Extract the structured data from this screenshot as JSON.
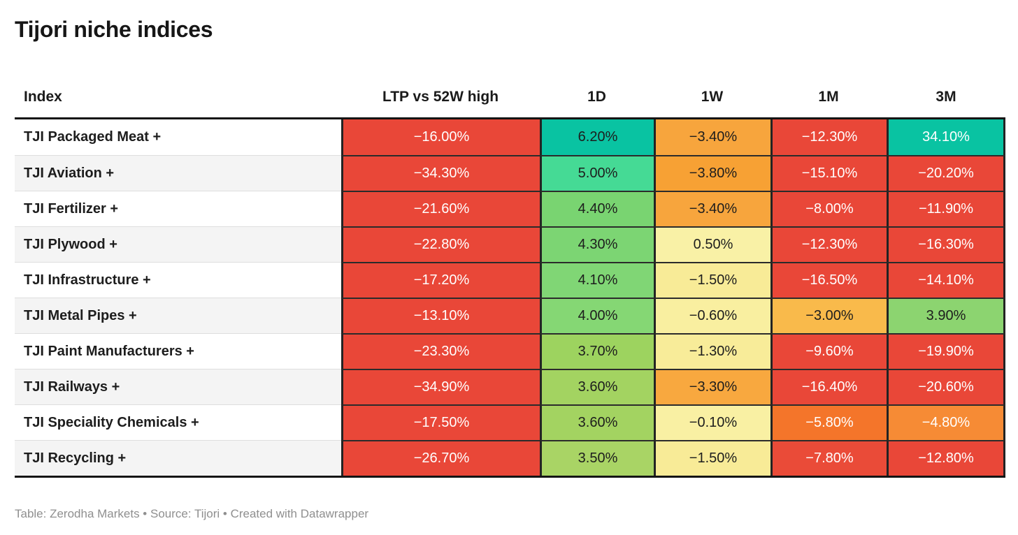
{
  "title": "Tijori niche indices",
  "columns": [
    {
      "label": "Index"
    },
    {
      "label": "LTP vs 52W high"
    },
    {
      "label": "1D"
    },
    {
      "label": "1W"
    },
    {
      "label": "1M"
    },
    {
      "label": "3M"
    }
  ],
  "footer": "Table: Zerodha Markets • Source: Tijori • Created with Datawrapper",
  "palette": {
    "red": "#e94738",
    "orange_red": "#f4752a",
    "orange": "#f7a53d",
    "light_orange": "#f9ba4b",
    "pale_yellow": "#f9f0a1",
    "yellow_green": "#a6d363",
    "green": "#7ed675",
    "emerald": "#45da95",
    "teal": "#09c3a2",
    "dark_text": "#1d1d1d",
    "white_text": "#ffffff"
  },
  "table": {
    "rows": [
      {
        "name": "TJI Packaged Meat +",
        "cells": [
          {
            "text": "−16.00%",
            "bg": "#e94738",
            "fg": "#ffffff"
          },
          {
            "text": "6.20%",
            "bg": "#09c3a2",
            "fg": "#1d1d1d"
          },
          {
            "text": "−3.40%",
            "bg": "#f7a53d",
            "fg": "#1d1d1d"
          },
          {
            "text": "−12.30%",
            "bg": "#e94738",
            "fg": "#ffffff"
          },
          {
            "text": "34.10%",
            "bg": "#09c3a2",
            "fg": "#ffffff"
          }
        ]
      },
      {
        "name": "TJI Aviation +",
        "cells": [
          {
            "text": "−34.30%",
            "bg": "#e94738",
            "fg": "#ffffff"
          },
          {
            "text": "5.00%",
            "bg": "#45da95",
            "fg": "#1d1d1d"
          },
          {
            "text": "−3.80%",
            "bg": "#f7a134",
            "fg": "#1d1d1d"
          },
          {
            "text": "−15.10%",
            "bg": "#e94738",
            "fg": "#ffffff"
          },
          {
            "text": "−20.20%",
            "bg": "#e94738",
            "fg": "#ffffff"
          }
        ]
      },
      {
        "name": "TJI Fertilizer +",
        "cells": [
          {
            "text": "−21.60%",
            "bg": "#e94738",
            "fg": "#ffffff"
          },
          {
            "text": "4.40%",
            "bg": "#79d471",
            "fg": "#1d1d1d"
          },
          {
            "text": "−3.40%",
            "bg": "#f7a53d",
            "fg": "#1d1d1d"
          },
          {
            "text": "−8.00%",
            "bg": "#e94738",
            "fg": "#ffffff"
          },
          {
            "text": "−11.90%",
            "bg": "#e94738",
            "fg": "#ffffff"
          }
        ]
      },
      {
        "name": "TJI Plywood +",
        "cells": [
          {
            "text": "−22.80%",
            "bg": "#e94738",
            "fg": "#ffffff"
          },
          {
            "text": "4.30%",
            "bg": "#7cd573",
            "fg": "#1d1d1d"
          },
          {
            "text": "0.50%",
            "bg": "#f9f1a6",
            "fg": "#1d1d1d"
          },
          {
            "text": "−12.30%",
            "bg": "#e94738",
            "fg": "#ffffff"
          },
          {
            "text": "−16.30%",
            "bg": "#e94738",
            "fg": "#ffffff"
          }
        ]
      },
      {
        "name": "TJI Infrastructure +",
        "cells": [
          {
            "text": "−17.20%",
            "bg": "#e94738",
            "fg": "#ffffff"
          },
          {
            "text": "4.10%",
            "bg": "#80d675",
            "fg": "#1d1d1d"
          },
          {
            "text": "−1.50%",
            "bg": "#f8eb97",
            "fg": "#1d1d1d"
          },
          {
            "text": "−16.50%",
            "bg": "#e94738",
            "fg": "#ffffff"
          },
          {
            "text": "−14.10%",
            "bg": "#e94738",
            "fg": "#ffffff"
          }
        ]
      },
      {
        "name": "TJI Metal Pipes +",
        "cells": [
          {
            "text": "−13.10%",
            "bg": "#e94738",
            "fg": "#ffffff"
          },
          {
            "text": "4.00%",
            "bg": "#85d774",
            "fg": "#1d1d1d"
          },
          {
            "text": "−0.60%",
            "bg": "#f9efa0",
            "fg": "#1d1d1d"
          },
          {
            "text": "−3.00%",
            "bg": "#f9ba4b",
            "fg": "#1d1d1d"
          },
          {
            "text": "3.90%",
            "bg": "#8cd470",
            "fg": "#1d1d1d"
          }
        ]
      },
      {
        "name": "TJI Paint Manufacturers +",
        "cells": [
          {
            "text": "−23.30%",
            "bg": "#e94738",
            "fg": "#ffffff"
          },
          {
            "text": "3.70%",
            "bg": "#9dd35f",
            "fg": "#1d1d1d"
          },
          {
            "text": "−1.30%",
            "bg": "#f8ec99",
            "fg": "#1d1d1d"
          },
          {
            "text": "−9.60%",
            "bg": "#e94738",
            "fg": "#ffffff"
          },
          {
            "text": "−19.90%",
            "bg": "#e94738",
            "fg": "#ffffff"
          }
        ]
      },
      {
        "name": "TJI Railways +",
        "cells": [
          {
            "text": "−34.90%",
            "bg": "#e94738",
            "fg": "#ffffff"
          },
          {
            "text": "3.60%",
            "bg": "#a3d361",
            "fg": "#1d1d1d"
          },
          {
            "text": "−3.30%",
            "bg": "#f8a83f",
            "fg": "#1d1d1d"
          },
          {
            "text": "−16.40%",
            "bg": "#e94738",
            "fg": "#ffffff"
          },
          {
            "text": "−20.60%",
            "bg": "#e94738",
            "fg": "#ffffff"
          }
        ]
      },
      {
        "name": "TJI Speciality Chemicals +",
        "cells": [
          {
            "text": "−17.50%",
            "bg": "#e94738",
            "fg": "#ffffff"
          },
          {
            "text": "3.60%",
            "bg": "#a3d361",
            "fg": "#1d1d1d"
          },
          {
            "text": "−0.10%",
            "bg": "#f9f0a3",
            "fg": "#1d1d1d"
          },
          {
            "text": "−5.80%",
            "bg": "#f4752a",
            "fg": "#ffffff"
          },
          {
            "text": "−4.80%",
            "bg": "#f68b35",
            "fg": "#ffffff"
          }
        ]
      },
      {
        "name": "TJI Recycling +",
        "cells": [
          {
            "text": "−26.70%",
            "bg": "#e94738",
            "fg": "#ffffff"
          },
          {
            "text": "3.50%",
            "bg": "#a9d465",
            "fg": "#1d1d1d"
          },
          {
            "text": "−1.50%",
            "bg": "#f8eb97",
            "fg": "#1d1d1d"
          },
          {
            "text": "−7.80%",
            "bg": "#ea4b38",
            "fg": "#ffffff"
          },
          {
            "text": "−12.80%",
            "bg": "#e94738",
            "fg": "#ffffff"
          }
        ]
      }
    ]
  },
  "chart_data": {
    "type": "table",
    "title": "Tijori niche indices",
    "columns": [
      "Index",
      "LTP vs 52W high",
      "1D",
      "1W",
      "1M",
      "3M"
    ],
    "units": "%",
    "rows": [
      [
        "TJI Packaged Meat +",
        -16.0,
        6.2,
        -3.4,
        -12.3,
        34.1
      ],
      [
        "TJI Aviation +",
        -34.3,
        5.0,
        -3.8,
        -15.1,
        -20.2
      ],
      [
        "TJI Fertilizer +",
        -21.6,
        4.4,
        -3.4,
        -8.0,
        -11.9
      ],
      [
        "TJI Plywood +",
        -22.8,
        4.3,
        0.5,
        -12.3,
        -16.3
      ],
      [
        "TJI Infrastructure +",
        -17.2,
        4.1,
        -1.5,
        -16.5,
        -14.1
      ],
      [
        "TJI Metal Pipes +",
        -13.1,
        4.0,
        -0.6,
        -3.0,
        3.9
      ],
      [
        "TJI Paint Manufacturers +",
        -23.3,
        3.7,
        -1.3,
        -9.6,
        -19.9
      ],
      [
        "TJI Railways +",
        -34.9,
        3.6,
        -3.3,
        -16.4,
        -20.6
      ],
      [
        "TJI Speciality Chemicals +",
        -17.5,
        3.6,
        -0.1,
        -5.8,
        -4.8
      ],
      [
        "TJI Recycling +",
        -26.7,
        3.5,
        -1.5,
        -7.8,
        -12.8
      ]
    ],
    "layout_hints": {
      "cell_color_scale": "diverging red (negative) → pale yellow (≈0) → green/teal (positive)",
      "row_label_stripes": "alternating white / #f4f4f4",
      "footer": "Table: Zerodha Markets • Source: Tijori • Created with Datawrapper"
    }
  }
}
